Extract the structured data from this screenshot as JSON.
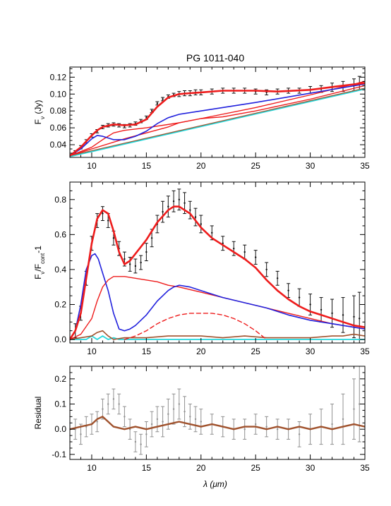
{
  "title": "PG 1011-040",
  "xlabel": "λ (μm)",
  "colors": {
    "red": "#ee1c1c",
    "blue": "#2222dd",
    "cyan": "#22d8dc",
    "brown": "#a0522d",
    "data_black": "#111111",
    "data_gray": "#909090"
  },
  "chart_data": [
    {
      "type": "line",
      "title": "PG 1011-040",
      "xlabel": "",
      "ylabel_main": "F",
      "ylabel_sub": "ν",
      "ylabel_tail": " (Jy)",
      "xlim": [
        8,
        35
      ],
      "ylim": [
        0.025,
        0.132
      ],
      "xticks": [
        10,
        15,
        20,
        25,
        30,
        35
      ],
      "yticks": [
        0.04,
        0.06,
        0.08,
        0.1,
        0.12
      ],
      "ytick_labels": [
        "0.04",
        "0.06",
        "0.08",
        "0.10",
        "0.12"
      ],
      "data": {
        "x": [
          8.0,
          8.5,
          9.0,
          9.5,
          10.0,
          10.5,
          11.0,
          11.5,
          12.0,
          12.5,
          13.0,
          13.5,
          14.0,
          14.5,
          15.0,
          15.5,
          16.0,
          16.5,
          17.0,
          17.5,
          18.0,
          18.5,
          19.0,
          19.5,
          20.0,
          21.0,
          22.0,
          23.0,
          24.0,
          25.0,
          26.0,
          27.0,
          28.0,
          29.0,
          30.0,
          31.0,
          32.0,
          33.0,
          34.0,
          34.5
        ],
        "y": [
          0.026,
          0.031,
          0.037,
          0.044,
          0.051,
          0.056,
          0.061,
          0.063,
          0.064,
          0.063,
          0.062,
          0.063,
          0.065,
          0.068,
          0.072,
          0.08,
          0.089,
          0.094,
          0.097,
          0.099,
          0.1,
          0.101,
          0.101,
          0.102,
          0.102,
          0.103,
          0.104,
          0.104,
          0.104,
          0.103,
          0.102,
          0.103,
          0.104,
          0.104,
          0.105,
          0.106,
          0.108,
          0.109,
          0.111,
          0.113
        ],
        "err": [
          0.002,
          0.002,
          0.002,
          0.002,
          0.002,
          0.002,
          0.002,
          0.002,
          0.002,
          0.002,
          0.002,
          0.002,
          0.002,
          0.002,
          0.002,
          0.002,
          0.002,
          0.002,
          0.002,
          0.002,
          0.003,
          0.003,
          0.003,
          0.003,
          0.003,
          0.003,
          0.003,
          0.003,
          0.003,
          0.003,
          0.003,
          0.003,
          0.003,
          0.003,
          0.004,
          0.004,
          0.005,
          0.006,
          0.007,
          0.008
        ]
      },
      "series": [
        {
          "color": "red",
          "width": 2.6,
          "x": [
            8,
            9,
            10,
            10.5,
            11,
            12,
            13,
            14,
            15,
            16,
            17,
            18,
            19,
            20,
            22,
            24,
            25,
            27,
            30,
            33,
            35
          ],
          "y": [
            0.027,
            0.037,
            0.051,
            0.057,
            0.061,
            0.064,
            0.063,
            0.064,
            0.07,
            0.085,
            0.096,
            0.1,
            0.101,
            0.102,
            0.104,
            0.104,
            0.104,
            0.103,
            0.105,
            0.11,
            0.113
          ]
        },
        {
          "color": "blue",
          "width": 1.6,
          "x": [
            8,
            9,
            10,
            10.5,
            11,
            12,
            13,
            14,
            15,
            16,
            17,
            18,
            20,
            25,
            30,
            35
          ],
          "y": [
            0.027,
            0.035,
            0.047,
            0.051,
            0.05,
            0.046,
            0.046,
            0.05,
            0.056,
            0.065,
            0.072,
            0.076,
            0.08,
            0.09,
            0.101,
            0.112
          ]
        },
        {
          "color": "red",
          "width": 1.4,
          "x": [
            8,
            10,
            11,
            12,
            13,
            15,
            18,
            20,
            25,
            30,
            35
          ],
          "y": [
            0.027,
            0.037,
            0.046,
            0.054,
            0.057,
            0.06,
            0.066,
            0.071,
            0.084,
            0.099,
            0.115
          ]
        },
        {
          "color": "red",
          "width": 1.4,
          "x": [
            8,
            13,
            17,
            18,
            20,
            22,
            25,
            30,
            35
          ],
          "y": [
            0.027,
            0.047,
            0.061,
            0.066,
            0.071,
            0.073,
            0.08,
            0.094,
            0.11
          ]
        },
        {
          "color": "brown",
          "width": 1.2,
          "x": [
            8,
            35
          ],
          "y": [
            0.027,
            0.107
          ]
        },
        {
          "color": "cyan",
          "width": 1.8,
          "x": [
            8,
            35
          ],
          "y": [
            0.026,
            0.106
          ]
        }
      ]
    },
    {
      "type": "line",
      "xlabel": "",
      "ylabel_main": "F",
      "ylabel_sub": "ν",
      "ylabel_tail": "/F",
      "ylabel_sub2": "cont",
      "ylabel_end": "-1",
      "xlim": [
        8,
        35
      ],
      "ylim": [
        -0.02,
        0.9
      ],
      "xticks": [
        10,
        15,
        20,
        25,
        30,
        35
      ],
      "yticks": [
        0.0,
        0.2,
        0.4,
        0.6,
        0.8
      ],
      "ytick_labels": [
        "0.0",
        "0.2",
        "0.4",
        "0.6",
        "0.8"
      ],
      "data": {
        "x": [
          8.5,
          9.0,
          9.5,
          10.0,
          10.5,
          11.0,
          11.5,
          12.0,
          12.5,
          13.0,
          13.5,
          14.0,
          14.5,
          15.0,
          15.5,
          16.0,
          16.5,
          17.0,
          17.5,
          18.0,
          18.5,
          19.0,
          19.5,
          20.0,
          21.0,
          22.0,
          23.0,
          24.0,
          25.0,
          26.0,
          27.0,
          28.0,
          29.0,
          30.0,
          31.0,
          32.0,
          33.0,
          34.0,
          34.5
        ],
        "y": [
          0.05,
          0.15,
          0.35,
          0.55,
          0.68,
          0.72,
          0.68,
          0.58,
          0.52,
          0.46,
          0.43,
          0.42,
          0.44,
          0.5,
          0.58,
          0.66,
          0.73,
          0.76,
          0.79,
          0.8,
          0.78,
          0.74,
          0.7,
          0.66,
          0.61,
          0.55,
          0.52,
          0.5,
          0.47,
          0.4,
          0.35,
          0.28,
          0.24,
          0.2,
          0.17,
          0.15,
          0.14,
          0.13,
          0.12
        ],
        "err": [
          0.04,
          0.04,
          0.04,
          0.04,
          0.04,
          0.04,
          0.04,
          0.04,
          0.04,
          0.04,
          0.04,
          0.04,
          0.04,
          0.05,
          0.05,
          0.05,
          0.06,
          0.06,
          0.06,
          0.06,
          0.06,
          0.05,
          0.05,
          0.05,
          0.04,
          0.04,
          0.04,
          0.04,
          0.04,
          0.04,
          0.04,
          0.04,
          0.05,
          0.06,
          0.07,
          0.08,
          0.1,
          0.12,
          0.15
        ]
      },
      "series": [
        {
          "color": "red",
          "width": 2.6,
          "x": [
            8,
            8.5,
            9,
            9.5,
            10,
            10.5,
            11,
            11.5,
            12,
            12.5,
            13,
            13.5,
            14,
            15,
            16,
            17,
            17.5,
            18,
            19,
            20,
            21,
            22,
            23,
            24,
            25,
            26,
            27,
            28,
            29,
            30,
            31,
            32,
            33,
            34,
            35
          ],
          "y": [
            0.0,
            0.05,
            0.15,
            0.35,
            0.55,
            0.69,
            0.74,
            0.72,
            0.62,
            0.5,
            0.43,
            0.45,
            0.49,
            0.57,
            0.67,
            0.74,
            0.76,
            0.76,
            0.72,
            0.64,
            0.58,
            0.54,
            0.5,
            0.46,
            0.41,
            0.34,
            0.28,
            0.23,
            0.19,
            0.16,
            0.14,
            0.12,
            0.1,
            0.08,
            0.07
          ]
        },
        {
          "color": "blue",
          "width": 1.6,
          "x": [
            8,
            8.5,
            9,
            9.5,
            10,
            10.3,
            10.6,
            11,
            11.5,
            12,
            12.5,
            13,
            13.5,
            14,
            15,
            16,
            17,
            17.5,
            18,
            19,
            20,
            22,
            24,
            26,
            28,
            30,
            32,
            34,
            35
          ],
          "y": [
            0.0,
            0.05,
            0.2,
            0.4,
            0.48,
            0.49,
            0.46,
            0.38,
            0.28,
            0.15,
            0.06,
            0.05,
            0.06,
            0.08,
            0.14,
            0.22,
            0.28,
            0.3,
            0.31,
            0.3,
            0.28,
            0.24,
            0.21,
            0.18,
            0.14,
            0.11,
            0.09,
            0.07,
            0.06
          ]
        },
        {
          "color": "red",
          "width": 1.4,
          "x": [
            8,
            9,
            10,
            10.5,
            11,
            11.5,
            12,
            13,
            14,
            15,
            16,
            17,
            18,
            20,
            22,
            24,
            26,
            28,
            30,
            32,
            34,
            35
          ],
          "y": [
            0.0,
            0.03,
            0.12,
            0.22,
            0.3,
            0.34,
            0.36,
            0.36,
            0.35,
            0.34,
            0.33,
            0.31,
            0.3,
            0.27,
            0.24,
            0.21,
            0.18,
            0.15,
            0.12,
            0.09,
            0.07,
            0.06
          ]
        },
        {
          "color": "red",
          "width": 1.4,
          "dashed": true,
          "x": [
            13,
            14,
            15,
            16,
            17,
            18,
            19,
            20,
            21,
            22,
            23,
            24,
            25,
            26
          ],
          "y": [
            0.0,
            0.02,
            0.05,
            0.09,
            0.12,
            0.14,
            0.15,
            0.15,
            0.15,
            0.14,
            0.12,
            0.09,
            0.05,
            0.0
          ]
        },
        {
          "color": "brown",
          "width": 1.6,
          "x": [
            8,
            9,
            10,
            10.5,
            11,
            11.5,
            12,
            13,
            15,
            17,
            18,
            20,
            22,
            24,
            26,
            28,
            30,
            32,
            33,
            34,
            35
          ],
          "y": [
            0.0,
            0.01,
            0.02,
            0.04,
            0.05,
            0.02,
            0.0,
            0.01,
            0.01,
            0.02,
            0.02,
            0.02,
            0.01,
            0.02,
            0.01,
            0.01,
            0.01,
            0.02,
            0.02,
            0.03,
            0.02
          ]
        },
        {
          "color": "cyan",
          "width": 1.8,
          "x": [
            8,
            9.5,
            10,
            10.5,
            11,
            11.5,
            12,
            12.5,
            13,
            14,
            16,
            20,
            25,
            30,
            35
          ],
          "y": [
            0.0,
            0.0,
            0.02,
            0.0,
            0.02,
            0.0,
            0.01,
            0.0,
            0.0,
            0.0,
            0.0,
            0.0,
            0.0,
            0.0,
            0.0
          ]
        }
      ]
    },
    {
      "type": "line",
      "xlabel": "λ (μm)",
      "ylabel_main": "Residual",
      "xlim": [
        8,
        35
      ],
      "ylim": [
        -0.12,
        0.25
      ],
      "xticks": [
        10,
        15,
        20,
        25,
        30,
        35
      ],
      "yticks": [
        -0.1,
        0.0,
        0.1,
        0.2
      ],
      "ytick_labels": [
        "-0.1",
        "0.0",
        "0.1",
        "0.2"
      ],
      "data": {
        "x": [
          8.5,
          9.0,
          9.5,
          10.0,
          10.5,
          11.0,
          11.5,
          12.0,
          12.5,
          13.0,
          13.5,
          14.0,
          14.5,
          15.0,
          15.5,
          16.0,
          16.5,
          17.0,
          17.5,
          18.0,
          18.5,
          19.0,
          19.5,
          20.0,
          21.0,
          22.0,
          23.0,
          24.0,
          25.0,
          26.0,
          27.0,
          28.0,
          29.0,
          30.0,
          31.0,
          32.0,
          33.0,
          34.0,
          34.5
        ],
        "y": [
          0.0,
          -0.02,
          0.01,
          0.02,
          0.03,
          0.08,
          0.1,
          0.12,
          0.1,
          0.05,
          0.0,
          -0.05,
          -0.06,
          -0.02,
          0.02,
          0.04,
          0.03,
          0.06,
          0.08,
          0.1,
          0.07,
          0.05,
          0.04,
          0.03,
          0.02,
          0.01,
          0.0,
          0.0,
          0.02,
          0.01,
          0.0,
          0.0,
          -0.02,
          0.0,
          0.01,
          0.02,
          0.04,
          0.08,
          0.1
        ],
        "err": [
          0.04,
          0.04,
          0.04,
          0.04,
          0.04,
          0.04,
          0.04,
          0.04,
          0.04,
          0.04,
          0.04,
          0.04,
          0.04,
          0.05,
          0.05,
          0.05,
          0.06,
          0.06,
          0.06,
          0.06,
          0.06,
          0.05,
          0.05,
          0.05,
          0.04,
          0.04,
          0.04,
          0.04,
          0.04,
          0.04,
          0.04,
          0.04,
          0.05,
          0.06,
          0.07,
          0.08,
          0.1,
          0.12,
          0.15
        ]
      },
      "series": [
        {
          "color": "brown",
          "width": 2.4,
          "x": [
            8,
            9,
            10,
            10.5,
            11,
            11.5,
            12,
            13,
            14,
            15,
            16,
            17,
            18,
            19,
            20,
            21,
            22,
            23,
            24,
            25,
            26,
            27,
            28,
            29,
            30,
            31,
            32,
            33,
            34,
            35
          ],
          "y": [
            0.0,
            0.01,
            0.02,
            0.04,
            0.05,
            0.03,
            0.01,
            0.0,
            0.01,
            0.0,
            0.01,
            0.02,
            0.03,
            0.02,
            0.01,
            0.02,
            0.01,
            0.0,
            0.01,
            0.01,
            0.0,
            0.01,
            0.0,
            0.01,
            0.0,
            0.01,
            0.0,
            0.01,
            0.02,
            0.01
          ]
        }
      ]
    }
  ]
}
